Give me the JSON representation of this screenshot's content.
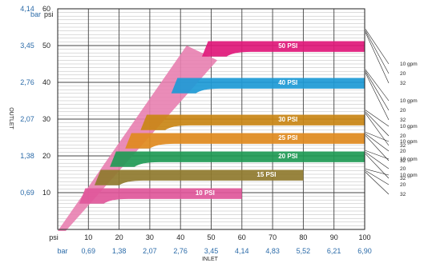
{
  "chart_data": {
    "type": "area",
    "title": "",
    "xlabel": "INLET",
    "ylabel": "OUTLET",
    "x_units": {
      "psi": "psi",
      "bar": "bar"
    },
    "y_units": {
      "psi": "psi",
      "bar": "bar"
    },
    "xlim": [
      0,
      100
    ],
    "ylim": [
      0,
      60
    ],
    "x_ticks_psi": [
      "10",
      "20",
      "30",
      "40",
      "50",
      "60",
      "70",
      "80",
      "90",
      "100"
    ],
    "x_ticks_bar": [
      "0,69",
      "1,38",
      "2,07",
      "2,76",
      "3,45",
      "4,14",
      "4,83",
      "5,52",
      "6,21",
      "6,90"
    ],
    "y_ticks_psi": [
      "10",
      "20",
      "30",
      "40",
      "50",
      "60"
    ],
    "y_ticks_bar": [
      "0,69",
      "1,38",
      "2,07",
      "2,76",
      "3,45",
      "4,14"
    ],
    "grid": true,
    "flow_labels": [
      "10 gpm",
      "20",
      "32"
    ],
    "series": [
      {
        "name": "10 PSI",
        "setpoint": 10,
        "x_end": 60,
        "color": "#e0579a"
      },
      {
        "name": "15 PSI",
        "setpoint": 15,
        "x_end": 80,
        "color": "#8f7a2e"
      },
      {
        "name": "20 PSI",
        "setpoint": 20,
        "x_end": 100,
        "color": "#1f9a55"
      },
      {
        "name": "25 PSI",
        "setpoint": 25,
        "x_end": 100,
        "color": "#e08a1e"
      },
      {
        "name": "30 PSI",
        "setpoint": 30,
        "x_end": 100,
        "color": "#c98515"
      },
      {
        "name": "40 PSI",
        "setpoint": 40,
        "x_end": 100,
        "color": "#1d9ad6"
      },
      {
        "name": "50 PSI",
        "setpoint": 50,
        "x_end": 100,
        "color": "#e0187a"
      }
    ],
    "ramp_color": "#e880b0"
  }
}
